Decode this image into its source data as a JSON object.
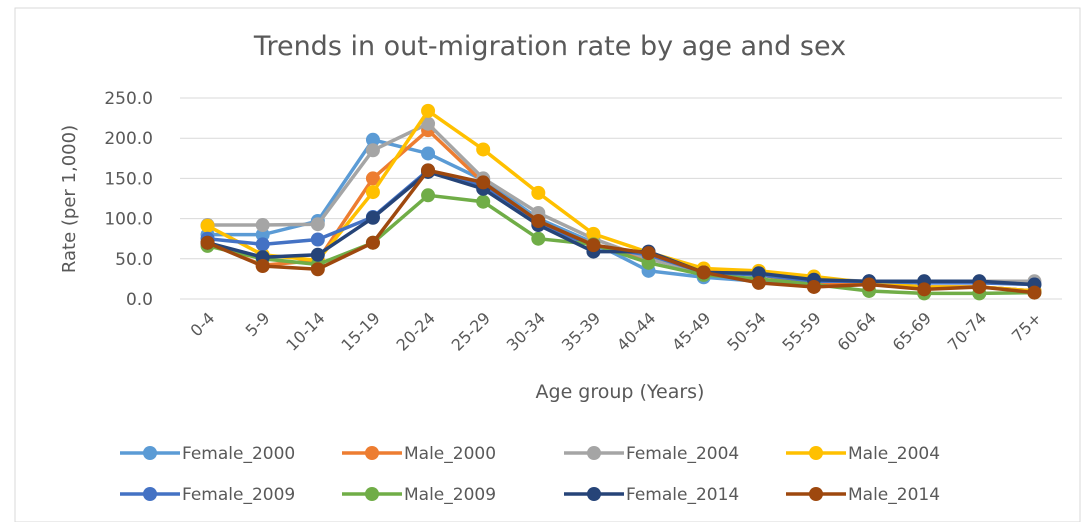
{
  "chart_data": {
    "type": "line",
    "title": "Trends in out-migration rate by age and sex",
    "xlabel": "Age group (Years)",
    "ylabel": "Rate (per 1,000)",
    "categories": [
      "0-4",
      "5-9",
      "10-14",
      "15-19",
      "20-24",
      "25-29",
      "30-34",
      "35-39",
      "40-44",
      "45-49",
      "50-54",
      "55-59",
      "60-64",
      "65-69",
      "70-74",
      "75+"
    ],
    "ylim": [
      0,
      250
    ],
    "yticks": [
      {
        "value": 0,
        "label": "0.0"
      },
      {
        "value": 50,
        "label": "50.0"
      },
      {
        "value": 100,
        "label": "100.0"
      },
      {
        "value": 150,
        "label": "150.0"
      },
      {
        "value": 200,
        "label": "200.0"
      },
      {
        "value": 250,
        "label": "250.0"
      }
    ],
    "grid": true,
    "legend": "bottom",
    "series": [
      {
        "name": "Female_2000",
        "color": "#5B9BD5",
        "values": [
          80,
          80,
          97,
          198,
          181,
          148,
          100,
          70,
          35,
          27,
          22,
          18,
          18,
          15,
          15,
          10
        ]
      },
      {
        "name": "Male_2000",
        "color": "#ED7D31",
        "values": [
          70,
          42,
          48,
          150,
          210,
          145,
          95,
          68,
          50,
          35,
          30,
          20,
          20,
          15,
          15,
          10
        ]
      },
      {
        "name": "Female_2004",
        "color": "#A5A5A5",
        "values": [
          92,
          92,
          93,
          185,
          218,
          150,
          107,
          75,
          50,
          33,
          30,
          25,
          22,
          22,
          22,
          22
        ]
      },
      {
        "name": "Male_2004",
        "color": "#FFC000",
        "values": [
          91,
          55,
          48,
          133,
          234,
          186,
          132,
          81,
          58,
          38,
          35,
          28,
          20,
          15,
          15,
          10
        ]
      },
      {
        "name": "Female_2009",
        "color": "#4472C4",
        "values": [
          75,
          68,
          74,
          102,
          160,
          140,
          95,
          65,
          55,
          33,
          30,
          22,
          22,
          20,
          20,
          18
        ]
      },
      {
        "name": "Male_2009",
        "color": "#70AD47",
        "values": [
          66,
          50,
          43,
          70,
          129,
          121,
          75,
          68,
          45,
          30,
          25,
          18,
          10,
          7,
          7,
          8
        ]
      },
      {
        "name": "Female_2014",
        "color": "#264478",
        "values": [
          70,
          52,
          55,
          101,
          158,
          137,
          92,
          59,
          59,
          33,
          32,
          24,
          22,
          22,
          22,
          18
        ]
      },
      {
        "name": "Male_2014",
        "color": "#9E480E",
        "values": [
          70,
          41,
          37,
          70,
          160,
          145,
          97,
          67,
          57,
          33,
          20,
          15,
          18,
          12,
          15,
          8
        ]
      }
    ]
  }
}
